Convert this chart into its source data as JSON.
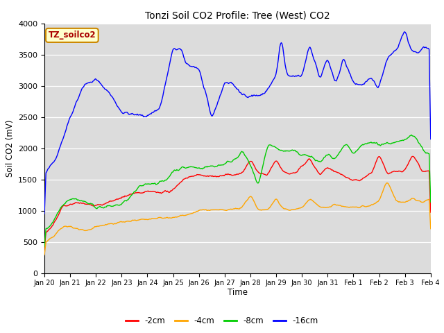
{
  "title": "Tonzi Soil CO2 Profile: Tree (West) CO2",
  "xlabel": "Time",
  "ylabel": "Soil CO2 (mV)",
  "ylim": [
    0,
    4000
  ],
  "plot_bg": "#dcdcdc",
  "fig_bg": "#ffffff",
  "legend_label": "TZ_soilco2",
  "series": {
    "-2cm": {
      "color": "#ff0000"
    },
    "-4cm": {
      "color": "#ffa500"
    },
    "-8cm": {
      "color": "#00cc00"
    },
    "-16cm": {
      "color": "#0000ff"
    }
  },
  "xtick_labels": [
    "Jan 20",
    "Jan 21",
    "Jan 22",
    "Jan 23",
    "Jan 24",
    "Jan 25",
    "Jan 26",
    "Jan 27",
    "Jan 28",
    "Jan 29",
    "Jan 30",
    "Jan 31",
    "Feb 1",
    "Feb 2",
    "Feb 3",
    "Feb 4"
  ],
  "yticks": [
    0,
    500,
    1000,
    1500,
    2000,
    2500,
    3000,
    3500,
    4000
  ]
}
